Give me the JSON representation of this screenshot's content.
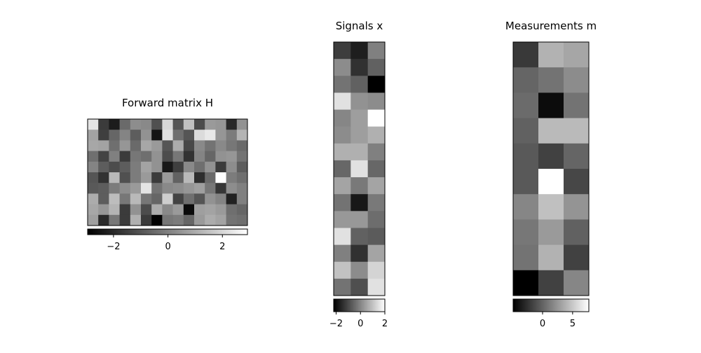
{
  "chart_data": [
    {
      "type": "heatmap",
      "title": "Forward matrix H",
      "values": [
        [
          2.3,
          -1.6,
          -2.3,
          -0.5,
          0.3,
          0.2,
          -1.1,
          2.0,
          -1.0,
          1.5,
          -1.2,
          0.6,
          0.5,
          -2.0,
          0.4
        ],
        [
          0.8,
          -1.5,
          -0.6,
          0.1,
          -0.8,
          0.4,
          -2.5,
          2.2,
          -0.4,
          -1.0,
          2.1,
          2.4,
          0.5,
          -0.1,
          1.2
        ],
        [
          0.9,
          0.8,
          -0.4,
          0.5,
          -0.5,
          0.9,
          0.6,
          -1.0,
          1.0,
          -1.3,
          0.2,
          -0.3,
          0.2,
          -0.2,
          -0.5
        ],
        [
          -0.4,
          -1.4,
          0.0,
          -1.6,
          -0.2,
          -0.4,
          0.4,
          -1.2,
          -0.2,
          -1.8,
          0.1,
          -0.6,
          0.4,
          0.5,
          -0.3
        ],
        [
          0.1,
          -0.8,
          -1.2,
          -0.8,
          -0.1,
          0.8,
          0.4,
          -2.4,
          -1.5,
          0.2,
          -0.4,
          0.4,
          -1.6,
          0.3,
          -0.8
        ],
        [
          -1.0,
          -1.8,
          1.3,
          -1.1,
          -0.1,
          0.6,
          -1.6,
          0.6,
          -0.7,
          1.3,
          -1.9,
          -0.5,
          2.9,
          -0.1,
          -0.4
        ],
        [
          -0.9,
          -0.8,
          -0.1,
          0.3,
          0.6,
          2.3,
          -0.3,
          0.2,
          0.3,
          0.5,
          0.7,
          -0.2,
          -1.7,
          0.3,
          0.0
        ],
        [
          1.0,
          -0.8,
          1.4,
          -0.2,
          1.3,
          -0.2,
          -0.6,
          1.8,
          -1.4,
          -0.4,
          -1.0,
          0.4,
          0.1,
          -2.2,
          0.0
        ],
        [
          0.9,
          0.5,
          1.2,
          -1.6,
          0.4,
          -1.2,
          1.0,
          0.2,
          0.6,
          -2.7,
          0.7,
          0.8,
          0.6,
          -0.4,
          -0.6
        ],
        [
          0.7,
          -2.0,
          -0.2,
          -1.6,
          1.1,
          -1.6,
          -2.9,
          -0.2,
          -0.1,
          -0.6,
          0.6,
          1.0,
          0.8,
          -0.3,
          -0.4
        ]
      ],
      "colormap": "gray",
      "clim": [
        -2.95,
        2.92
      ],
      "cticks": [
        {
          "value": -2,
          "label": "−2"
        },
        0,
        2
      ]
    },
    {
      "type": "heatmap",
      "title": "Signals x",
      "values": [
        [
          -1.2,
          -1.7,
          -0.1
        ],
        [
          0.1,
          -1.4,
          -0.6
        ],
        [
          -0.3,
          -0.6,
          -2.2
        ],
        [
          1.5,
          0.2,
          0.1
        ],
        [
          0.0,
          0.4,
          2.0
        ],
        [
          0.1,
          0.4,
          0.7
        ],
        [
          0.7,
          0.7,
          -0.1
        ],
        [
          -0.5,
          1.5,
          -0.5
        ],
        [
          0.5,
          -0.2,
          0.5
        ],
        [
          -0.3,
          -1.8,
          -0.2
        ],
        [
          0.3,
          0.3,
          -0.4
        ],
        [
          1.5,
          -0.6,
          -0.7
        ],
        [
          -0.1,
          -1.4,
          0.5
        ],
        [
          1.0,
          0.1,
          1.3
        ],
        [
          -0.3,
          -0.9,
          1.5
        ]
      ],
      "colormap": "gray",
      "clim": [
        -2.2,
        2.0
      ],
      "cticks": [
        {
          "value": -2,
          "label": "−2"
        },
        0,
        2
      ]
    },
    {
      "type": "heatmap",
      "title": "Measurements m",
      "values": [
        [
          -2.1,
          3.9,
          3.3
        ],
        [
          0.1,
          0.8,
          2.0
        ],
        [
          0.4,
          -4.3,
          0.8
        ],
        [
          -0.1,
          4.3,
          4.3
        ],
        [
          -0.5,
          -1.7,
          0.1
        ],
        [
          -0.5,
          7.7,
          -1.4
        ],
        [
          1.7,
          4.6,
          2.4
        ],
        [
          1.0,
          2.7,
          -0.1
        ],
        [
          0.8,
          3.9,
          -1.7
        ],
        [
          -4.9,
          -1.7,
          1.7
        ]
      ],
      "colormap": "gray",
      "clim": [
        -4.9,
        7.7
      ],
      "cticks": [
        0,
        5
      ]
    }
  ]
}
